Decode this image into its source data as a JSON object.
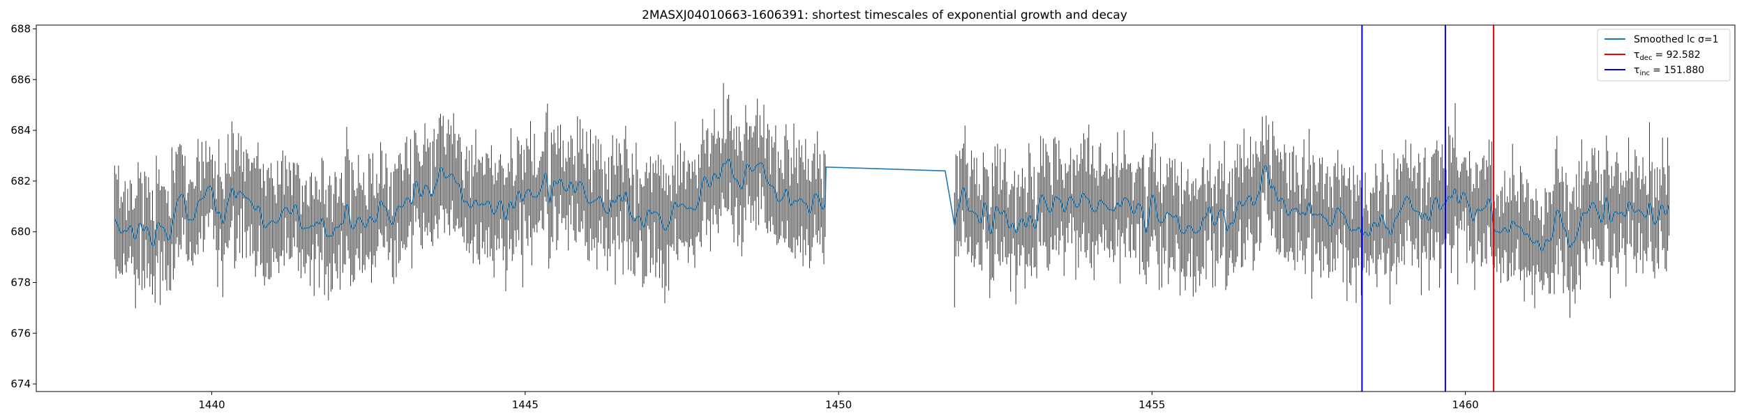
{
  "chart_data": {
    "type": "line",
    "title": "2MASXJ04010663-1606391: shortest timescales of exponential growth and decay",
    "xlabel": "",
    "ylabel": "",
    "xlim": [
      1437.2,
      1464.3
    ],
    "ylim": [
      673.7,
      688.15
    ],
    "xticks": [
      1440,
      1445,
      1450,
      1455,
      1460
    ],
    "yticks": [
      674,
      676,
      678,
      680,
      682,
      684,
      686,
      688
    ],
    "grid": false,
    "legend_position": "upper right",
    "data_segments": [
      {
        "x_start": 1438.45,
        "x_end": 1449.8,
        "mean": 680.4,
        "trend": 0.9
      },
      {
        "x_start": 1451.85,
        "x_end": 1463.25,
        "mean": 680.8,
        "trend": 0.0
      }
    ],
    "gap_line": {
      "x": [
        1449.8,
        1451.7
      ],
      "y": [
        682.55,
        682.4
      ]
    },
    "vlines": [
      {
        "x": 1458.35,
        "color": "#0000ee",
        "series": "tau_inc"
      },
      {
        "x": 1459.68,
        "color": "#0000ee",
        "series": "tau_inc"
      },
      {
        "x": 1460.45,
        "color": "#ee0000",
        "series": "tau_dec"
      }
    ],
    "series": [
      {
        "key": "smoothed",
        "color": "#1f77b4",
        "label": "Smoothed lc σ=1"
      },
      {
        "key": "tau_dec",
        "color": "#ee0000",
        "symbol": "τ",
        "subscript": "dec",
        "value_text": "= 92.582"
      },
      {
        "key": "tau_inc",
        "color": "#0000ee",
        "symbol": "τ",
        "subscript": "inc",
        "value_text": "= 151.880"
      }
    ],
    "errorbar_color": "#333333"
  }
}
